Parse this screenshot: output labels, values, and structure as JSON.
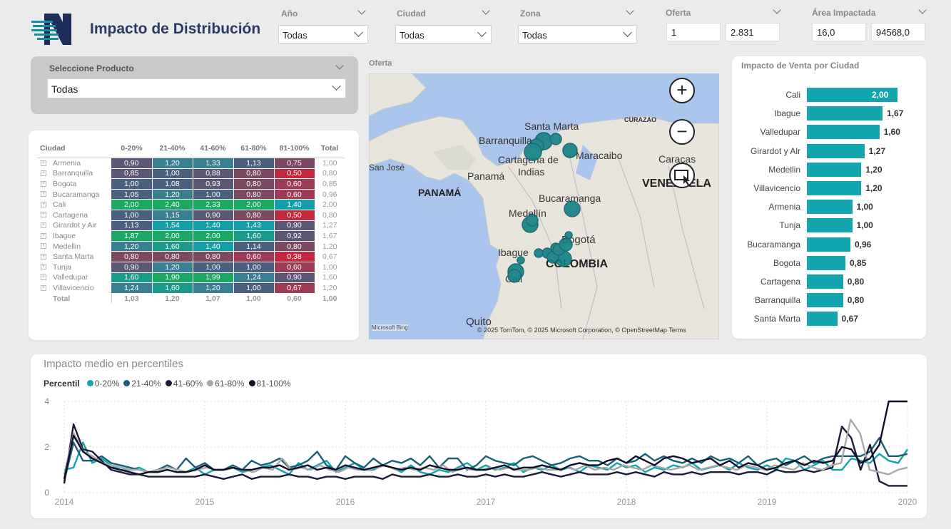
{
  "header": {
    "title": "Impacto de Distribución"
  },
  "filters": {
    "anio": {
      "label": "Año",
      "value": "Todas"
    },
    "ciudad": {
      "label": "Ciudad",
      "value": "Todas"
    },
    "zona": {
      "label": "Zona",
      "value": "Todas"
    },
    "oferta": {
      "label": "Oferta",
      "min": "1",
      "max": "2.831"
    },
    "area": {
      "label": "Área Impactada",
      "min": "16,0",
      "max": "94568,0"
    }
  },
  "producto": {
    "label": "Seleccione Producto",
    "value": "Todas"
  },
  "matrix": {
    "headers": [
      "Ciudad",
      "0-20%",
      "21-40%",
      "41-60%",
      "61-80%",
      "81-100%",
      "Total"
    ],
    "rows": [
      {
        "city": "Armenia",
        "v": [
          "0,90",
          "1,20",
          "1,33",
          "1,13",
          "0,75"
        ],
        "total": "1,00"
      },
      {
        "city": "Barranquilla",
        "v": [
          "0,85",
          "1,00",
          "0,88",
          "0,80",
          "0,50"
        ],
        "total": "0,80"
      },
      {
        "city": "Bogota",
        "v": [
          "1,00",
          "1,08",
          "0,93",
          "0,80",
          "0,60"
        ],
        "total": "0,85"
      },
      {
        "city": "Bucaramanga",
        "v": [
          "1,05",
          "1,20",
          "1,00",
          "0,80",
          "0,60"
        ],
        "total": "0,96"
      },
      {
        "city": "Cali",
        "v": [
          "2,00",
          "2,40",
          "2,33",
          "2,00",
          "1,40"
        ],
        "total": "2,00"
      },
      {
        "city": "Cartagena",
        "v": [
          "1,00",
          "1,15",
          "0,90",
          "0,80",
          "0,50"
        ],
        "total": "0,80"
      },
      {
        "city": "Girardot y Air",
        "v": [
          "1,13",
          "1,54",
          "1,40",
          "1,43",
          "0,90"
        ],
        "total": "1,27"
      },
      {
        "city": "Ibague",
        "v": [
          "1,87",
          "2,00",
          "2,00",
          "1,60",
          "0,92"
        ],
        "total": "1,67"
      },
      {
        "city": "Medellin",
        "v": [
          "1,20",
          "1,60",
          "1,40",
          "1,14",
          "0,80"
        ],
        "total": "1,20"
      },
      {
        "city": "Santa Marta",
        "v": [
          "0,80",
          "0,80",
          "0,80",
          "0,60",
          "0,38"
        ],
        "total": "0,67"
      },
      {
        "city": "Tunja",
        "v": [
          "0,90",
          "1,20",
          "1,00",
          "1,00",
          "0,60"
        ],
        "total": "1,00"
      },
      {
        "city": "Valledupar",
        "v": [
          "1,60",
          "1,90",
          "1,99",
          "1,24",
          "0,90"
        ],
        "total": "1,60"
      },
      {
        "city": "Villavicencio",
        "v": [
          "1,24",
          "1,60",
          "1,20",
          "1,00",
          "0,67"
        ],
        "total": "1,20"
      }
    ],
    "total": {
      "city": "Total",
      "v": [
        "1,03",
        "1,20",
        "1,07",
        "1,00",
        "0,60"
      ],
      "total": "1,00"
    }
  },
  "map": {
    "title": "Oferta",
    "labels": [
      "Santa Marta",
      "CURAZAO",
      "Barranquilla",
      "Cartagena de",
      "Indias",
      "Maracaibo",
      "Caracas",
      "San José",
      "Panamá",
      "PANAMÁ",
      "VENEZUELA",
      "Bucaramanga",
      "Medellín",
      "Bogotá",
      "Ibague",
      "COLOMBIA",
      "Cali",
      "Quito"
    ],
    "attribution": "© 2025 TomTom, © 2025 Microsoft Corporation, © OpenStreetMap  Terms",
    "bing": "Microsoft Bing"
  },
  "bars": {
    "title": "Impacto de Venta por Ciudad",
    "items": [
      {
        "city": "Cali",
        "value": 2.0,
        "label": "2,00"
      },
      {
        "city": "Ibague",
        "value": 1.67,
        "label": "1,67"
      },
      {
        "city": "Valledupar",
        "value": 1.6,
        "label": "1,60"
      },
      {
        "city": "Girardot y Alr",
        "value": 1.27,
        "label": "1,27"
      },
      {
        "city": "Medellin",
        "value": 1.2,
        "label": "1,20"
      },
      {
        "city": "Villavicencio",
        "value": 1.2,
        "label": "1,20"
      },
      {
        "city": "Armenia",
        "value": 1.0,
        "label": "1,00"
      },
      {
        "city": "Tunja",
        "value": 1.0,
        "label": "1,00"
      },
      {
        "city": "Bucaramanga",
        "value": 0.96,
        "label": "0,96"
      },
      {
        "city": "Bogota",
        "value": 0.85,
        "label": "0,85"
      },
      {
        "city": "Cartagena",
        "value": 0.8,
        "label": "0,80"
      },
      {
        "city": "Barranquilla",
        "value": 0.8,
        "label": "0,80"
      },
      {
        "city": "Santa Marta",
        "value": 0.67,
        "label": "0,67"
      }
    ]
  },
  "chart_data": {
    "type": "line",
    "title": "Impacto medio en percentiles",
    "legend_title": "Percentil",
    "x_labels": [
      "2014",
      "2015",
      "2016",
      "2017",
      "2018",
      "2019",
      "2020"
    ],
    "y_ticks": [
      "0",
      "2",
      "4"
    ],
    "ylim": [
      0,
      4
    ],
    "xlim": [
      2014,
      2020
    ],
    "series": [
      {
        "name": "0-20%",
        "color": "#13a5ad",
        "values": [
          1.0,
          1.1,
          2.2,
          1.3,
          1.5,
          1.2,
          1.0,
          1.0,
          1.1,
          0.9,
          0.9,
          1.0,
          0.9,
          0.9,
          1.1,
          0.8,
          1.0,
          1.0,
          1.1,
          0.9,
          1.0,
          1.1,
          1.2,
          1.0,
          0.8,
          1.3,
          1.0,
          1.2,
          1.4,
          0.9,
          1.1,
          1.3,
          1.0,
          1.0,
          1.2,
          1.1,
          0.9,
          1.2,
          0.9,
          0.8,
          1.0,
          0.9,
          1.1,
          1.3,
          1.0,
          1.2,
          1.0,
          1.1,
          1.3,
          0.9,
          1.1,
          1.0,
          1.2,
          1.0,
          1.1,
          0.9,
          1.2,
          1.1,
          1.0,
          1.3,
          1.1,
          1.2,
          0.9,
          1.1,
          1.0,
          1.2,
          1.1,
          1.3,
          1.0,
          1.1,
          1.2,
          1.0,
          1.3,
          1.1,
          1.0,
          1.2,
          1.0,
          1.5,
          1.4,
          1.0,
          1.2,
          1.4,
          1.0,
          1.0,
          1.5,
          1.4,
          1.3,
          1.7,
          1.4,
          1.3,
          1.9
        ]
      },
      {
        "name": "21-40%",
        "color": "#1a5f73",
        "values": [
          0.5,
          2.2,
          1.4,
          1.4,
          1.6,
          1.3,
          1.2,
          1.1,
          1.0,
          0.9,
          1.0,
          1.2,
          1.0,
          1.5,
          1.1,
          1.3,
          1.0,
          1.0,
          1.2,
          1.0,
          1.4,
          1.2,
          1.3,
          1.5,
          1.1,
          1.2,
          1.4,
          1.8,
          1.2,
          1.0,
          1.6,
          1.3,
          1.1,
          1.5,
          1.2,
          1.4,
          1.3,
          1.5,
          1.2,
          1.6,
          1.1,
          1.5,
          1.5,
          1.0,
          1.2,
          1.6,
          1.4,
          1.3,
          1.2,
          1.5,
          1.6,
          1.4,
          1.2,
          1.3,
          1.5,
          1.6,
          1.4,
          1.4,
          1.2,
          1.5,
          1.3,
          1.4,
          1.7,
          1.4,
          1.6,
          1.4,
          1.3,
          1.5,
          1.3,
          1.6,
          1.4,
          1.5,
          1.3,
          1.6,
          1.2,
          1.4,
          1.5,
          1.2,
          1.4,
          1.6,
          1.3,
          1.5,
          1.6,
          1.6,
          1.6,
          1.6,
          1.8,
          2.4,
          1.6,
          1.6,
          1.7
        ]
      },
      {
        "name": "41-60%",
        "color": "#1b1b3a",
        "values": [
          0.4,
          3.0,
          1.9,
          1.8,
          1.4,
          1.0,
          0.9,
          0.8,
          0.8,
          0.7,
          0.7,
          0.7,
          0.7,
          0.7,
          0.7,
          0.8,
          0.7,
          0.6,
          0.7,
          0.8,
          0.6,
          0.7,
          0.7,
          0.7,
          0.8,
          0.7,
          0.7,
          0.6,
          0.7,
          0.7,
          0.6,
          0.7,
          0.7,
          0.7,
          0.6,
          0.8,
          0.7,
          0.7,
          0.7,
          0.8,
          0.7,
          0.7,
          0.8,
          0.7,
          0.7,
          0.8,
          0.7,
          0.8,
          0.7,
          0.7,
          0.8,
          0.9,
          0.8,
          0.7,
          0.8,
          0.9,
          0.8,
          0.8,
          0.8,
          0.9,
          0.8,
          0.9,
          0.8,
          0.7,
          0.9,
          0.8,
          0.8,
          0.9,
          0.8,
          0.9,
          0.9,
          0.9,
          0.8,
          0.9,
          0.9,
          0.8,
          1.0,
          0.9,
          0.9,
          1.0,
          0.9,
          1.0,
          1.1,
          2.9,
          2.4,
          1.0,
          2.1,
          0.5,
          0.3,
          0.3,
          0.3
        ]
      },
      {
        "name": "61-80%",
        "color": "#a8a8a8",
        "values": [
          0.8,
          2.6,
          1.8,
          1.6,
          1.3,
          1.2,
          1.1,
          1.0,
          1.0,
          0.9,
          1.0,
          1.1,
          1.0,
          0.9,
          1.0,
          1.1,
          1.0,
          1.0,
          1.1,
          1.0,
          0.9,
          1.1,
          1.0,
          1.5,
          1.0,
          1.1,
          1.0,
          1.2,
          1.0,
          0.9,
          1.1,
          1.0,
          1.0,
          1.1,
          1.2,
          1.0,
          1.1,
          1.0,
          1.1,
          1.0,
          1.2,
          0.9,
          1.1,
          1.0,
          1.0,
          1.1,
          1.0,
          1.1,
          1.0,
          1.0,
          1.1,
          1.0,
          1.0,
          1.1,
          1.0,
          1.2,
          1.0,
          1.1,
          1.0,
          1.2,
          1.1,
          1.0,
          1.2,
          1.1,
          1.0,
          1.1,
          1.2,
          1.0,
          1.1,
          1.2,
          1.1,
          1.0,
          1.2,
          1.1,
          1.0,
          1.2,
          1.1,
          1.0,
          1.3,
          1.1,
          1.0,
          1.2,
          1.3,
          3.2,
          2.6,
          1.0,
          0.9,
          0.8,
          1.0,
          1.1
        ]
      },
      {
        "name": "81-100%",
        "color": "#0f0f2a",
        "values": [
          0.6,
          2.5,
          1.8,
          1.5,
          1.3,
          1.1,
          1.0,
          0.9,
          0.8,
          0.9,
          0.9,
          1.0,
          0.9,
          0.9,
          1.0,
          1.2,
          1.0,
          1.0,
          1.1,
          1.0,
          1.0,
          1.1,
          1.1,
          1.2,
          1.0,
          1.1,
          1.2,
          1.0,
          1.1,
          1.0,
          1.2,
          1.1,
          1.0,
          1.1,
          1.2,
          1.1,
          1.0,
          1.1,
          1.0,
          1.2,
          1.1,
          1.0,
          1.0,
          1.1,
          1.0,
          1.0,
          1.1,
          1.2,
          1.0,
          1.1,
          1.1,
          1.2,
          1.1,
          1.0,
          1.2,
          1.3,
          1.2,
          1.2,
          1.4,
          1.5,
          1.3,
          1.6,
          1.4,
          1.2,
          1.5,
          1.6,
          1.5,
          1.3,
          1.4,
          1.5,
          1.2,
          1.4,
          1.1,
          1.3,
          1.2,
          1.0,
          1.1,
          1.3,
          1.4,
          1.2,
          1.4,
          1.3,
          1.4,
          2.0,
          1.9,
          1.3,
          1.5,
          2.1,
          4.0,
          4.0,
          4.0
        ]
      }
    ]
  }
}
